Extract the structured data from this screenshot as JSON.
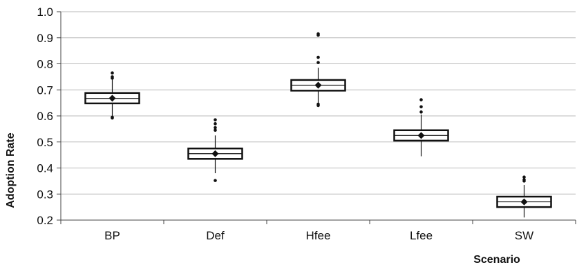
{
  "chart_data": {
    "type": "box",
    "title": "",
    "xlabel": "Scenario",
    "ylabel": "Adoption Rate",
    "ylim": [
      0.2,
      1.0
    ],
    "yticks": [
      0.2,
      0.3,
      0.4,
      0.5,
      0.6,
      0.7,
      0.8,
      0.9,
      1.0
    ],
    "ytick_labels": [
      "0.2",
      "0.3",
      "0.4",
      "0.5",
      "0.6",
      "0.7",
      "0.8",
      "0.9",
      "1.0"
    ],
    "grid": "horizontal",
    "categories": [
      "BP",
      "Def",
      "Hfee",
      "Lfee",
      "SW"
    ],
    "boxes": [
      {
        "name": "BP",
        "q1": 0.648,
        "median": 0.667,
        "q3": 0.688,
        "mean": 0.668,
        "whisker_low": 0.6,
        "whisker_high": 0.74,
        "outliers": [
          0.592,
          0.595,
          0.745,
          0.75,
          0.765
        ]
      },
      {
        "name": "Def",
        "q1": 0.435,
        "median": 0.455,
        "q3": 0.475,
        "mean": 0.455,
        "whisker_low": 0.38,
        "whisker_high": 0.525,
        "outliers": [
          0.352,
          0.545,
          0.555,
          0.57,
          0.585
        ]
      },
      {
        "name": "Hfee",
        "q1": 0.697,
        "median": 0.718,
        "q3": 0.738,
        "mean": 0.718,
        "whisker_low": 0.65,
        "whisker_high": 0.785,
        "outliers": [
          0.64,
          0.645,
          0.805,
          0.825,
          0.91,
          0.915
        ]
      },
      {
        "name": "Lfee",
        "q1": 0.505,
        "median": 0.525,
        "q3": 0.545,
        "mean": 0.525,
        "whisker_low": 0.445,
        "whisker_high": 0.605,
        "outliers": [
          0.615,
          0.635,
          0.662
        ]
      },
      {
        "name": "SW",
        "q1": 0.25,
        "median": 0.27,
        "q3": 0.29,
        "mean": 0.27,
        "whisker_low": 0.21,
        "whisker_high": 0.335,
        "outliers": [
          0.35,
          0.355,
          0.365
        ]
      }
    ]
  }
}
